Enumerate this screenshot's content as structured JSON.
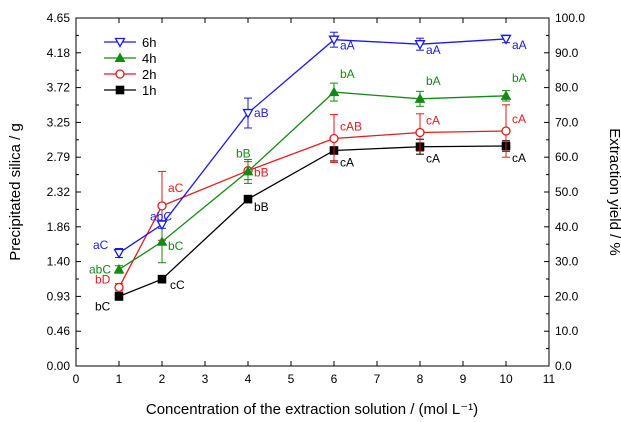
{
  "chart_data": {
    "type": "line",
    "xlabel": "Concentration of the extraction solution / (mol L⁻¹)",
    "ylabel_left": "Precipitated silica / g",
    "ylabel_right": "Extraction yield / %",
    "xlim": [
      0,
      11
    ],
    "ylim_left": [
      0.0,
      4.65
    ],
    "ylim_right": [
      0.0,
      100.0
    ],
    "x_ticks": [
      "0",
      "1",
      "2",
      "3",
      "4",
      "5",
      "6",
      "7",
      "8",
      "9",
      "10",
      "11"
    ],
    "y_ticks_left": [
      "0.00",
      "0.46",
      "0.93",
      "1.40",
      "1.86",
      "2.32",
      "2.79",
      "3.25",
      "3.72",
      "4.18",
      "4.65"
    ],
    "y_ticks_right": [
      "0.0",
      "10.0",
      "20.0",
      "30.0",
      "40.0",
      "50.0",
      "60.0",
      "70.0",
      "80.0",
      "90.0",
      "100.0"
    ],
    "legend_position": "top-left",
    "x": [
      1,
      2,
      4,
      6,
      8,
      10
    ],
    "series": [
      {
        "name": "6h",
        "color": "#1a1ae6",
        "marker": "triangle-down-open",
        "values": [
          1.51,
          1.89,
          3.38,
          4.36,
          4.3,
          4.37
        ],
        "errors": [
          0.06,
          0.05,
          0.2,
          0.1,
          0.08,
          0.05
        ],
        "labels": [
          "aC",
          "abC",
          "aB",
          "aA",
          "aA",
          "aA"
        ]
      },
      {
        "name": "4h",
        "color": "#138a13",
        "marker": "triangle-up-filled",
        "values": [
          1.29,
          1.66,
          2.6,
          3.66,
          3.57,
          3.61
        ],
        "errors": [
          0.05,
          0.28,
          0.16,
          0.12,
          0.1,
          0.07
        ],
        "labels": [
          "abC",
          "bC",
          "bB",
          "bA",
          "bA",
          "bA"
        ]
      },
      {
        "name": "2h",
        "color": "#e61a1a",
        "marker": "circle-open",
        "values": [
          1.05,
          2.14,
          2.61,
          3.04,
          3.12,
          3.14
        ],
        "errors": [
          0.05,
          0.46,
          0.12,
          0.32,
          0.25,
          0.35
        ],
        "labels": [
          "bD",
          "aC",
          "bB",
          "cAB",
          "cA",
          "cA"
        ]
      },
      {
        "name": "1h",
        "color": "#000000",
        "marker": "square-filled",
        "values": [
          0.93,
          1.16,
          2.23,
          2.88,
          2.93,
          2.94
        ],
        "errors": [
          0.05,
          0.05,
          0.03,
          0.14,
          0.1,
          0.07
        ],
        "labels": [
          "bC",
          "cC",
          "bB",
          "cA",
          "cA",
          "cA"
        ]
      }
    ]
  }
}
